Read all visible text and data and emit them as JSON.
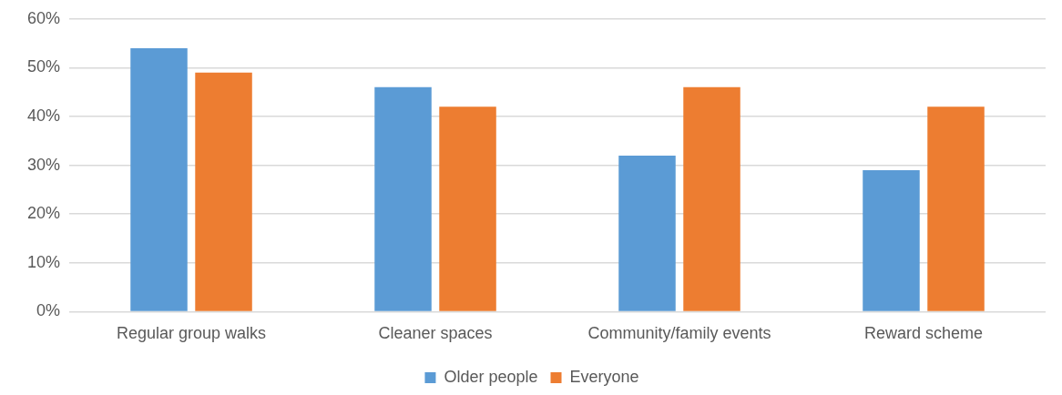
{
  "chart_data": {
    "type": "bar",
    "categories": [
      "Regular group walks",
      "Cleaner spaces",
      "Community/family events",
      "Reward scheme"
    ],
    "series": [
      {
        "name": "Older people",
        "color": "#5b9bd5",
        "values": [
          54,
          46,
          32,
          29
        ]
      },
      {
        "name": "Everyone",
        "color": "#ed7d31",
        "values": [
          49,
          42,
          46,
          42
        ]
      }
    ],
    "ylim": [
      0,
      60
    ],
    "yticks": [
      {
        "value": 0,
        "label": "0%"
      },
      {
        "value": 10,
        "label": "10%"
      },
      {
        "value": 20,
        "label": "20%"
      },
      {
        "value": 30,
        "label": "30%"
      },
      {
        "value": 40,
        "label": "40%"
      },
      {
        "value": 50,
        "label": "50%"
      },
      {
        "value": 60,
        "label": "60%"
      }
    ],
    "grid": "y",
    "legend": "bottom"
  }
}
